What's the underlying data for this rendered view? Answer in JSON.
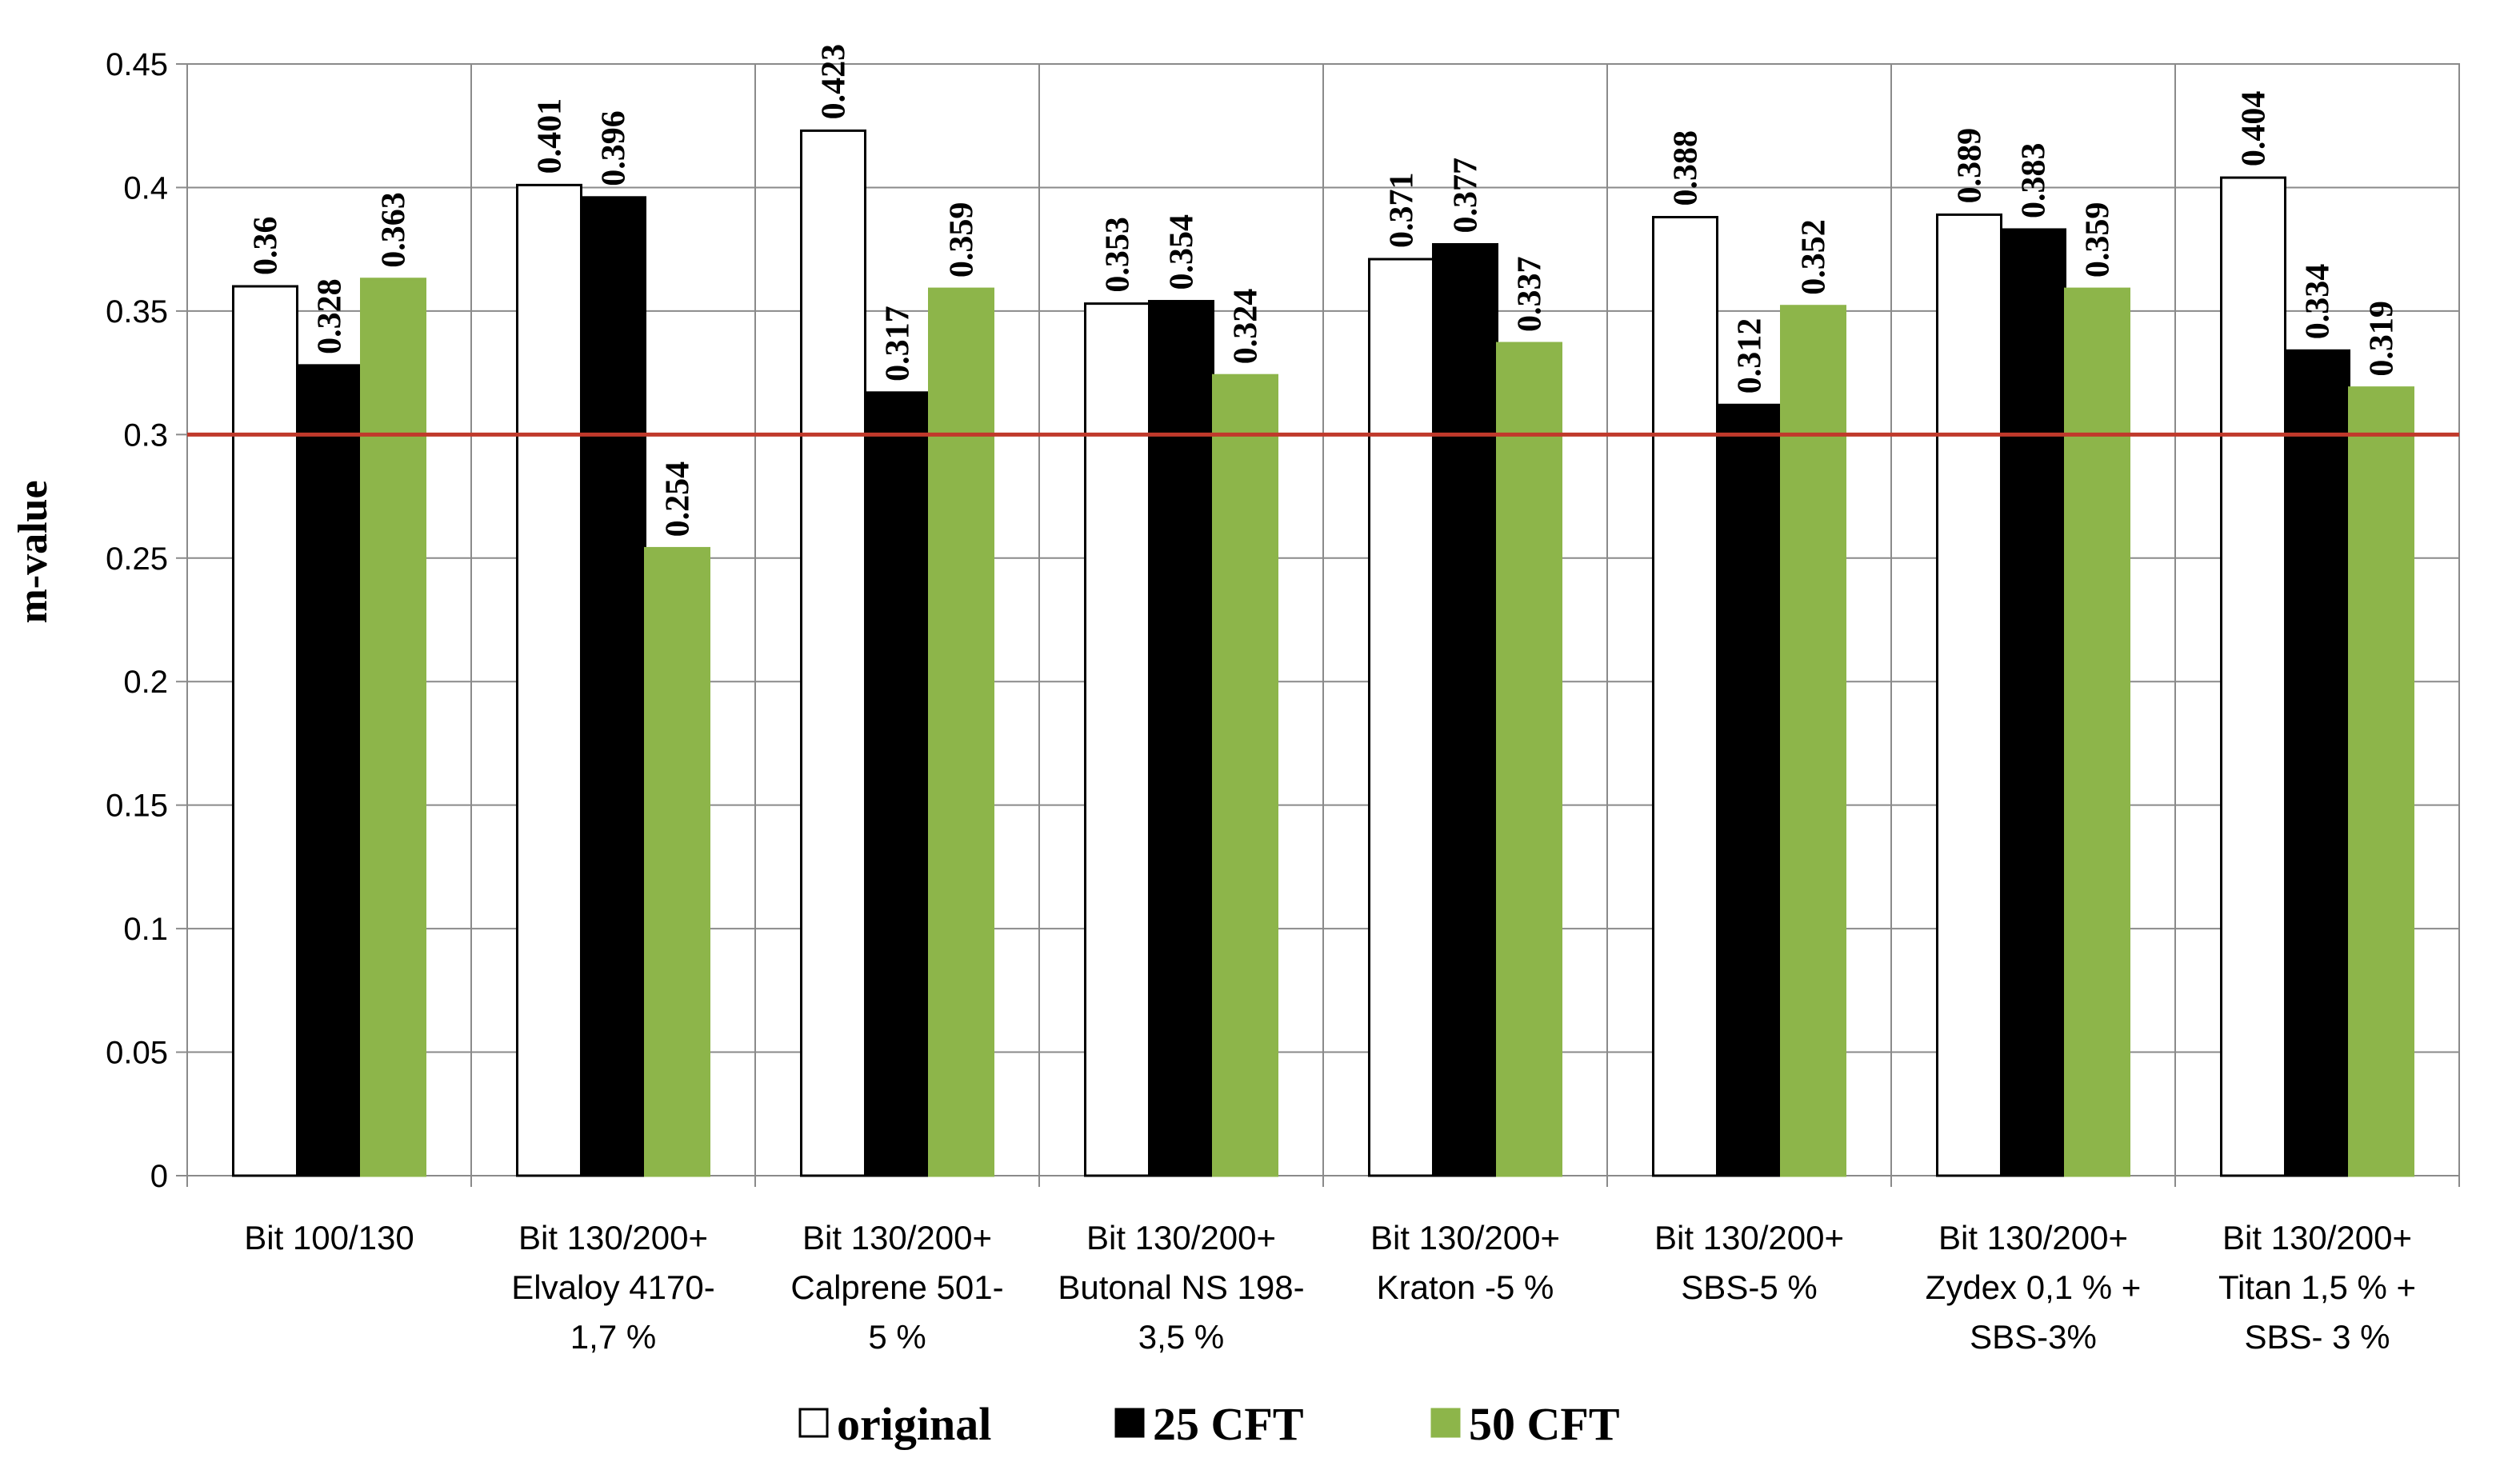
{
  "chart_data": {
    "type": "bar",
    "title": "",
    "xlabel": "",
    "ylabel": "m-value",
    "ylim": [
      0,
      0.45
    ],
    "yticks": [
      "0",
      "0.05",
      "0.1",
      "0.15",
      "0.2",
      "0.25",
      "0.3",
      "0.35",
      "0.4",
      "0.45"
    ],
    "grid": true,
    "legend_position": "bottom",
    "reference_line": {
      "value": 0.3,
      "color": "#c0392b"
    },
    "categories": [
      [
        "Bit 100/130"
      ],
      [
        "Bit 130/200+",
        "Elvaloy 4170-",
        "1,7 %"
      ],
      [
        "Bit 130/200+",
        "Calprene 501-",
        "5 %"
      ],
      [
        "Bit 130/200+",
        "Butonal NS 198-",
        "3,5 %"
      ],
      [
        "Bit 130/200+",
        "Kraton -5 %"
      ],
      [
        "Bit 130/200+",
        "SBS-5 %"
      ],
      [
        "Bit 130/200+",
        "Zydex 0,1 % +",
        "SBS-3%"
      ],
      [
        "Bit 130/200+",
        "Titan 1,5 % +",
        "SBS- 3 %"
      ]
    ],
    "series": [
      {
        "name": "original",
        "color": "#ffffff",
        "stroke": "#000000",
        "values": [
          0.36,
          0.401,
          0.423,
          0.353,
          0.371,
          0.388,
          0.389,
          0.404
        ],
        "labels": [
          "0.36",
          "0.401",
          "0.423",
          "0.353",
          "0.371",
          "0.388",
          "0.389",
          "0.404"
        ]
      },
      {
        "name": "25 CFT",
        "color": "#000000",
        "stroke": "#000000",
        "values": [
          0.328,
          0.396,
          0.317,
          0.354,
          0.377,
          0.312,
          0.383,
          0.334
        ],
        "labels": [
          "0.328",
          "0.396",
          "0.317",
          "0.354",
          "0.377",
          "0.312",
          "0.383",
          "0.334"
        ]
      },
      {
        "name": "50 CFT",
        "color": "#8db54a",
        "stroke": "#8db54a",
        "values": [
          0.363,
          0.254,
          0.359,
          0.324,
          0.337,
          0.352,
          0.359,
          0.319
        ],
        "labels": [
          "0.363",
          "0.254",
          "0.359",
          "0.324",
          "0.337",
          "0.352",
          "0.359",
          "0.319"
        ]
      }
    ]
  }
}
